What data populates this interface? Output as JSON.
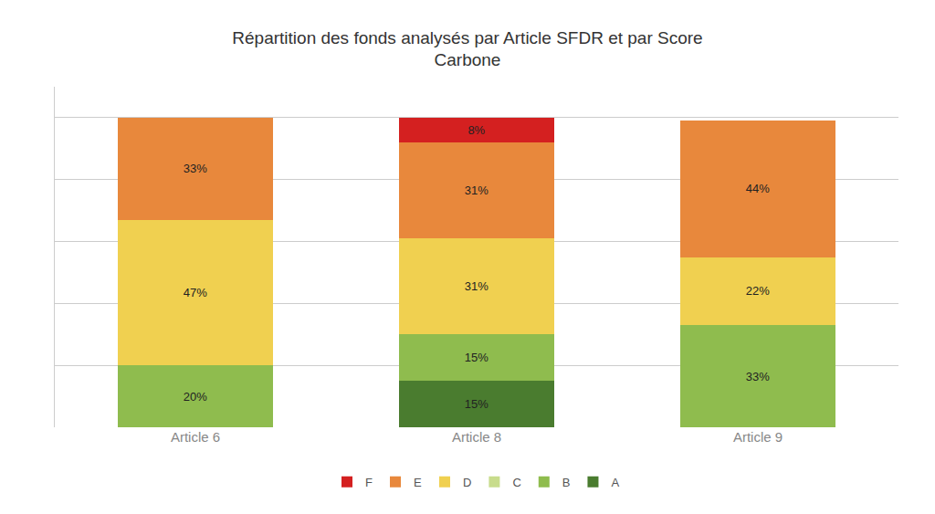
{
  "chart_data": {
    "type": "bar",
    "title": "Répartition des fonds analysés par Article SFDR et par Score\nCarbone",
    "categories": [
      "Article 6",
      "Article 8",
      "Article 9"
    ],
    "series": [
      {
        "name": "A",
        "color": "#4a7c2f",
        "values": [
          0,
          15,
          0
        ],
        "value_labels": [
          null,
          "15%",
          null
        ]
      },
      {
        "name": "B",
        "color": "#8fbc4e",
        "values": [
          20,
          15,
          33
        ],
        "value_labels": [
          "20%",
          "15%",
          "33%"
        ]
      },
      {
        "name": "C",
        "color": "#c8dc8c",
        "values": [
          0,
          0,
          0
        ],
        "value_labels": [
          null,
          null,
          null
        ]
      },
      {
        "name": "D",
        "color": "#f0d050",
        "values": [
          47,
          31,
          22
        ],
        "value_labels": [
          "47%",
          "31%",
          "22%"
        ]
      },
      {
        "name": "E",
        "color": "#e8883c",
        "values": [
          33,
          31,
          44
        ],
        "value_labels": [
          "33%",
          "31%",
          "44%"
        ]
      },
      {
        "name": "F",
        "color": "#d42020",
        "values": [
          0,
          8,
          0
        ],
        "value_labels": [
          null,
          "8%",
          null
        ]
      }
    ],
    "ylim": [
      0,
      110
    ],
    "yticks": [
      0,
      20,
      40,
      60,
      80,
      100
    ],
    "grid": true,
    "stacked": true,
    "data_labels": true,
    "legend": "bottom",
    "tick_labels": "x"
  }
}
